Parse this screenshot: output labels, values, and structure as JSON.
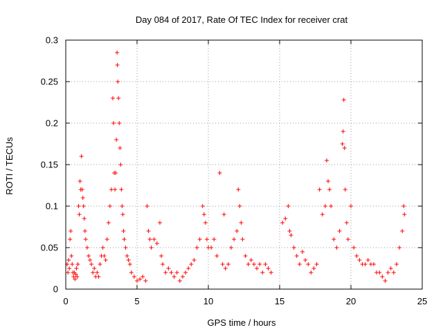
{
  "chart_data": {
    "type": "scatter",
    "title": "Day 084 of 2017, Rate Of TEC Index for receiver crat",
    "xlabel": "GPS time / hours",
    "ylabel": "ROTI / TECUs",
    "xlim": [
      0,
      25
    ],
    "ylim": [
      0,
      0.3
    ],
    "x_ticks": [
      "0",
      "5",
      "10",
      "15",
      "20",
      "25"
    ],
    "y_ticks": [
      "0",
      "0.05",
      "0.1",
      "0.15",
      "0.2",
      "0.25",
      "0.3"
    ],
    "grid": true,
    "marker": "+",
    "color": "#ff0000",
    "points": [
      [
        0.1,
        0.03
      ],
      [
        0.15,
        0.02
      ],
      [
        0.2,
        0.035
      ],
      [
        0.25,
        0.025
      ],
      [
        0.3,
        0.06
      ],
      [
        0.35,
        0.07
      ],
      [
        0.4,
        0.04
      ],
      [
        0.45,
        0.03
      ],
      [
        0.5,
        0.02
      ],
      [
        0.55,
        0.015
      ],
      [
        0.6,
        0.02
      ],
      [
        0.65,
        0.012
      ],
      [
        0.7,
        0.018
      ],
      [
        0.75,
        0.025
      ],
      [
        0.8,
        0.015
      ],
      [
        0.85,
        0.03
      ],
      [
        0.9,
        0.1
      ],
      [
        0.95,
        0.09
      ],
      [
        1.0,
        0.13
      ],
      [
        1.05,
        0.12
      ],
      [
        1.1,
        0.16
      ],
      [
        1.15,
        0.12
      ],
      [
        1.2,
        0.11
      ],
      [
        1.25,
        0.1
      ],
      [
        1.3,
        0.085
      ],
      [
        1.35,
        0.07
      ],
      [
        1.4,
        0.06
      ],
      [
        1.5,
        0.05
      ],
      [
        1.6,
        0.04
      ],
      [
        1.7,
        0.035
      ],
      [
        1.8,
        0.03
      ],
      [
        1.9,
        0.02
      ],
      [
        2.0,
        0.025
      ],
      [
        2.1,
        0.015
      ],
      [
        2.2,
        0.02
      ],
      [
        2.3,
        0.015
      ],
      [
        2.4,
        0.03
      ],
      [
        2.5,
        0.04
      ],
      [
        2.6,
        0.05
      ],
      [
        2.7,
        0.04
      ],
      [
        2.8,
        0.035
      ],
      [
        2.9,
        0.06
      ],
      [
        3.0,
        0.08
      ],
      [
        3.1,
        0.1
      ],
      [
        3.2,
        0.12
      ],
      [
        3.3,
        0.23
      ],
      [
        3.35,
        0.2
      ],
      [
        3.4,
        0.14
      ],
      [
        3.45,
        0.12
      ],
      [
        3.5,
        0.14
      ],
      [
        3.55,
        0.18
      ],
      [
        3.6,
        0.285
      ],
      [
        3.62,
        0.27
      ],
      [
        3.65,
        0.25
      ],
      [
        3.7,
        0.23
      ],
      [
        3.75,
        0.2
      ],
      [
        3.8,
        0.17
      ],
      [
        3.85,
        0.15
      ],
      [
        3.9,
        0.12
      ],
      [
        3.95,
        0.1
      ],
      [
        4.0,
        0.09
      ],
      [
        4.05,
        0.07
      ],
      [
        4.1,
        0.06
      ],
      [
        4.2,
        0.05
      ],
      [
        4.3,
        0.04
      ],
      [
        4.4,
        0.035
      ],
      [
        4.5,
        0.03
      ],
      [
        4.6,
        0.02
      ],
      [
        4.8,
        0.015
      ],
      [
        5.0,
        0.01
      ],
      [
        5.2,
        0.012
      ],
      [
        5.4,
        0.015
      ],
      [
        5.6,
        0.01
      ],
      [
        5.7,
        0.1
      ],
      [
        5.8,
        0.07
      ],
      [
        5.9,
        0.06
      ],
      [
        6.0,
        0.05
      ],
      [
        6.2,
        0.06
      ],
      [
        6.4,
        0.055
      ],
      [
        6.6,
        0.08
      ],
      [
        6.7,
        0.04
      ],
      [
        6.8,
        0.03
      ],
      [
        7.0,
        0.02
      ],
      [
        7.2,
        0.025
      ],
      [
        7.4,
        0.02
      ],
      [
        7.6,
        0.015
      ],
      [
        7.8,
        0.02
      ],
      [
        8.0,
        0.01
      ],
      [
        8.2,
        0.015
      ],
      [
        8.4,
        0.02
      ],
      [
        8.6,
        0.025
      ],
      [
        8.8,
        0.03
      ],
      [
        9.0,
        0.035
      ],
      [
        9.2,
        0.05
      ],
      [
        9.4,
        0.06
      ],
      [
        9.6,
        0.1
      ],
      [
        9.7,
        0.09
      ],
      [
        9.8,
        0.08
      ],
      [
        9.9,
        0.06
      ],
      [
        10.0,
        0.05
      ],
      [
        10.2,
        0.05
      ],
      [
        10.4,
        0.06
      ],
      [
        10.6,
        0.04
      ],
      [
        10.8,
        0.14
      ],
      [
        11.0,
        0.03
      ],
      [
        11.1,
        0.09
      ],
      [
        11.2,
        0.025
      ],
      [
        11.4,
        0.03
      ],
      [
        11.6,
        0.05
      ],
      [
        11.8,
        0.06
      ],
      [
        12.0,
        0.07
      ],
      [
        12.1,
        0.12
      ],
      [
        12.2,
        0.1
      ],
      [
        12.3,
        0.08
      ],
      [
        12.4,
        0.06
      ],
      [
        12.6,
        0.04
      ],
      [
        12.8,
        0.03
      ],
      [
        13.0,
        0.035
      ],
      [
        13.2,
        0.03
      ],
      [
        13.4,
        0.025
      ],
      [
        13.6,
        0.03
      ],
      [
        13.8,
        0.02
      ],
      [
        14.0,
        0.03
      ],
      [
        14.2,
        0.025
      ],
      [
        14.4,
        0.02
      ],
      [
        15.2,
        0.08
      ],
      [
        15.4,
        0.085
      ],
      [
        15.6,
        0.1
      ],
      [
        15.7,
        0.07
      ],
      [
        15.8,
        0.065
      ],
      [
        16.0,
        0.05
      ],
      [
        16.2,
        0.04
      ],
      [
        16.4,
        0.03
      ],
      [
        16.6,
        0.045
      ],
      [
        16.8,
        0.035
      ],
      [
        17.0,
        0.03
      ],
      [
        17.2,
        0.02
      ],
      [
        17.4,
        0.025
      ],
      [
        17.6,
        0.03
      ],
      [
        17.8,
        0.12
      ],
      [
        18.0,
        0.09
      ],
      [
        18.2,
        0.1
      ],
      [
        18.3,
        0.155
      ],
      [
        18.4,
        0.13
      ],
      [
        18.5,
        0.12
      ],
      [
        18.6,
        0.1
      ],
      [
        18.8,
        0.06
      ],
      [
        19.0,
        0.05
      ],
      [
        19.2,
        0.07
      ],
      [
        19.4,
        0.175
      ],
      [
        19.45,
        0.19
      ],
      [
        19.5,
        0.228
      ],
      [
        19.55,
        0.17
      ],
      [
        19.6,
        0.12
      ],
      [
        19.7,
        0.08
      ],
      [
        19.8,
        0.06
      ],
      [
        20.0,
        0.1
      ],
      [
        20.2,
        0.05
      ],
      [
        20.4,
        0.04
      ],
      [
        20.6,
        0.035
      ],
      [
        20.8,
        0.03
      ],
      [
        21.0,
        0.03
      ],
      [
        21.2,
        0.035
      ],
      [
        21.4,
        0.03
      ],
      [
        21.6,
        0.03
      ],
      [
        21.8,
        0.02
      ],
      [
        22.0,
        0.02
      ],
      [
        22.2,
        0.015
      ],
      [
        22.4,
        0.01
      ],
      [
        22.6,
        0.02
      ],
      [
        22.8,
        0.025
      ],
      [
        23.0,
        0.02
      ],
      [
        23.2,
        0.03
      ],
      [
        23.4,
        0.05
      ],
      [
        23.6,
        0.07
      ],
      [
        23.7,
        0.1
      ],
      [
        23.75,
        0.09
      ]
    ]
  }
}
